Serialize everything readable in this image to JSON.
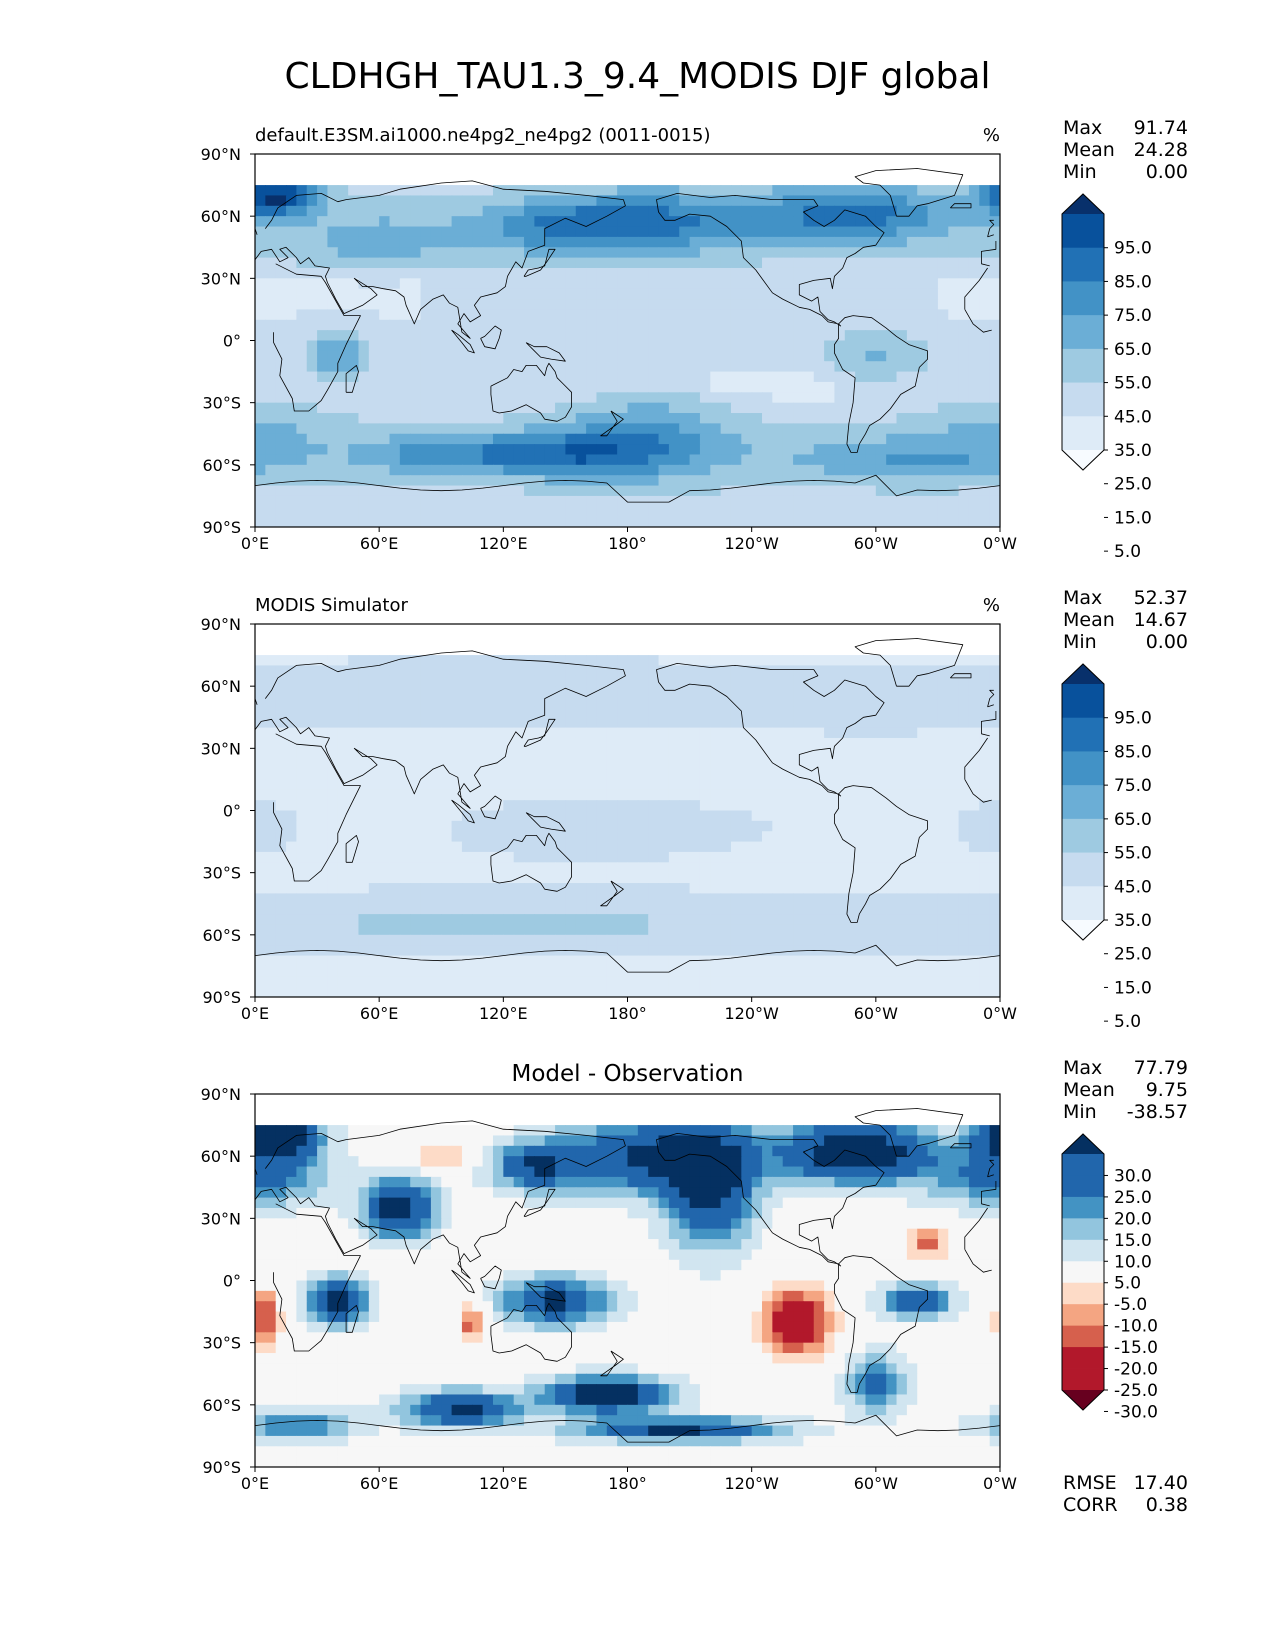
{
  "figure_title": "CLDHGH_TAU1.3_9.4_MODIS DJF global",
  "colors": {
    "seq": [
      "#f7fbff",
      "#deebf7",
      "#c6dbef",
      "#9ecae1",
      "#6baed6",
      "#4292c6",
      "#2171b5",
      "#08519c",
      "#08306b"
    ],
    "div_neg": [
      "#fddbc7",
      "#f4a582",
      "#d6604d",
      "#b2182b",
      "#67001f"
    ],
    "div_pos": [
      "#d1e5f0",
      "#92c5de",
      "#4393c3",
      "#2166ac",
      "#053061"
    ],
    "div_mid": "#f7f7f7"
  },
  "chart_data": [
    {
      "type": "heatmap",
      "panel": "model",
      "left_title": "default.E3SM.ai1000.ne4pg2_ne4pg2 (0011-0015)",
      "center_title": "",
      "units": "%",
      "x_ticks": [
        "0°E",
        "60°E",
        "120°E",
        "180°",
        "120°W",
        "60°W",
        "0°W"
      ],
      "y_ticks": [
        "90°N",
        "60°N",
        "30°N",
        "0°",
        "30°S",
        "60°S",
        "90°S"
      ],
      "xlim": [
        0,
        360
      ],
      "ylim": [
        -90,
        90
      ],
      "stats": [
        {
          "label": "Max",
          "value": "91.74"
        },
        {
          "label": "Mean",
          "value": "24.28"
        },
        {
          "label": "Min",
          "value": "0.00"
        }
      ],
      "colorbar_levels": [
        "95.0",
        "85.0",
        "75.0",
        "65.0",
        "55.0",
        "45.0",
        "35.0",
        "25.0",
        "15.0",
        "5.0"
      ],
      "colorbar_colors": "seq",
      "extra_stats": []
    },
    {
      "type": "heatmap",
      "panel": "obs",
      "left_title": "MODIS Simulator",
      "center_title": "",
      "units": "%",
      "x_ticks": [
        "0°E",
        "60°E",
        "120°E",
        "180°",
        "120°W",
        "60°W",
        "0°W"
      ],
      "y_ticks": [
        "90°N",
        "60°N",
        "30°N",
        "0°",
        "30°S",
        "60°S",
        "90°S"
      ],
      "xlim": [
        0,
        360
      ],
      "ylim": [
        -90,
        90
      ],
      "stats": [
        {
          "label": "Max",
          "value": "52.37"
        },
        {
          "label": "Mean",
          "value": "14.67"
        },
        {
          "label": "Min",
          "value": "0.00"
        }
      ],
      "colorbar_levels": [
        "95.0",
        "85.0",
        "75.0",
        "65.0",
        "55.0",
        "45.0",
        "35.0",
        "25.0",
        "15.0",
        "5.0"
      ],
      "colorbar_colors": "seq",
      "extra_stats": []
    },
    {
      "type": "heatmap",
      "panel": "diff",
      "left_title": "",
      "center_title": "Model - Observation",
      "units": "",
      "x_ticks": [
        "0°E",
        "60°E",
        "120°E",
        "180°",
        "120°W",
        "60°W",
        "0°W"
      ],
      "y_ticks": [
        "90°N",
        "60°N",
        "30°N",
        "0°",
        "30°S",
        "60°S",
        "90°S"
      ],
      "xlim": [
        0,
        360
      ],
      "ylim": [
        -90,
        90
      ],
      "stats": [
        {
          "label": "Max",
          "value": "77.79"
        },
        {
          "label": "Mean",
          "value": "9.75"
        },
        {
          "label": "Min",
          "value": "-38.57"
        }
      ],
      "colorbar_levels": [
        "30.0",
        "25.0",
        "20.0",
        "15.0",
        "10.0",
        "5.0",
        "-5.0",
        "-10.0",
        "-15.0",
        "-20.0",
        "-25.0",
        "-30.0"
      ],
      "colorbar_colors": "div",
      "extra_stats": [
        {
          "label": "RMSE",
          "value": "17.40"
        },
        {
          "label": "CORR",
          "value": "0.38"
        }
      ]
    }
  ]
}
